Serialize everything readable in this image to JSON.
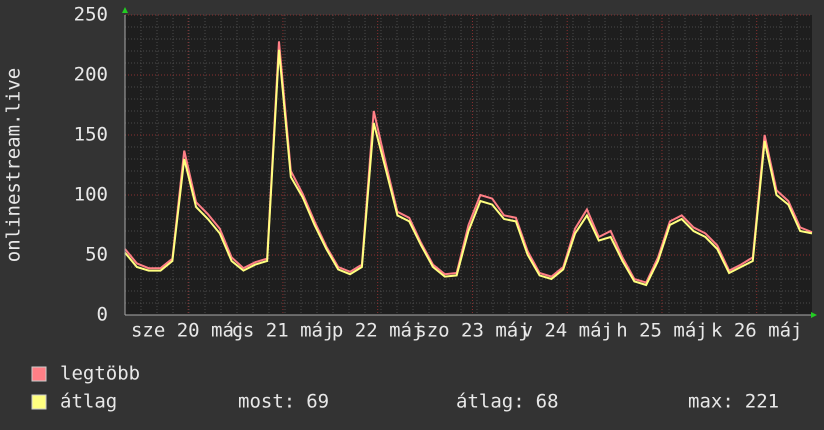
{
  "chart_data": {
    "type": "line",
    "y_label": "onlinestream.live",
    "x": [
      0,
      3,
      6,
      9,
      12,
      15,
      18,
      21,
      24,
      27,
      30,
      33,
      36,
      39,
      42,
      45,
      48,
      51,
      54,
      57,
      60,
      63,
      66,
      69,
      72,
      75,
      78,
      81,
      84,
      87,
      90,
      93,
      96,
      99,
      102,
      105,
      108,
      111,
      114,
      117,
      120,
      123,
      126,
      129,
      132,
      135,
      138,
      141,
      144,
      147,
      150,
      153,
      156,
      159,
      162,
      165,
      168,
      171,
      174
    ],
    "series": [
      {
        "name": "legtöbb",
        "color": "#ff7f86",
        "values": [
          55,
          43,
          39,
          39,
          47,
          137,
          94,
          84,
          72,
          48,
          39,
          44,
          47,
          228,
          120,
          101,
          78,
          57,
          40,
          36,
          42,
          170,
          127,
          86,
          81,
          60,
          42,
          34,
          35,
          75,
          100,
          97,
          83,
          81,
          53,
          35,
          32,
          40,
          72,
          88,
          65,
          70,
          48,
          30,
          27,
          48,
          78,
          83,
          73,
          68,
          58,
          37,
          42,
          48,
          150,
          104,
          95,
          73,
          69
        ]
      },
      {
        "name": "átlag",
        "color": "#ffff80",
        "values": [
          52,
          40,
          37,
          37,
          45,
          130,
          90,
          80,
          68,
          45,
          37,
          42,
          45,
          221,
          115,
          98,
          75,
          55,
          38,
          34,
          40,
          160,
          122,
          83,
          78,
          58,
          40,
          32,
          33,
          70,
          95,
          92,
          80,
          78,
          50,
          33,
          30,
          38,
          68,
          83,
          62,
          65,
          45,
          28,
          25,
          45,
          75,
          80,
          70,
          65,
          55,
          35,
          40,
          45,
          145,
          100,
          92,
          70,
          68
        ]
      }
    ],
    "xlim": [
      0,
      174
    ],
    "xticks": [
      {
        "value": 16,
        "label": "sze 20 máj"
      },
      {
        "value": 40,
        "label": "cs 21 máj"
      },
      {
        "value": 64,
        "label": "p 22 máj"
      },
      {
        "value": 88,
        "label": "szo 23 máj"
      },
      {
        "value": 112,
        "label": "v 24 máj"
      },
      {
        "value": 136,
        "label": "h 25 máj"
      },
      {
        "value": 160,
        "label": "k 26 máj"
      }
    ],
    "ylim": [
      0,
      250
    ],
    "yticks": [
      0,
      50,
      100,
      150,
      200,
      250
    ],
    "grid": true,
    "stats": [
      {
        "label": "most:",
        "value": 69
      },
      {
        "label": "átlag:",
        "value": 68
      },
      {
        "label": "max:",
        "value": 221
      }
    ]
  }
}
